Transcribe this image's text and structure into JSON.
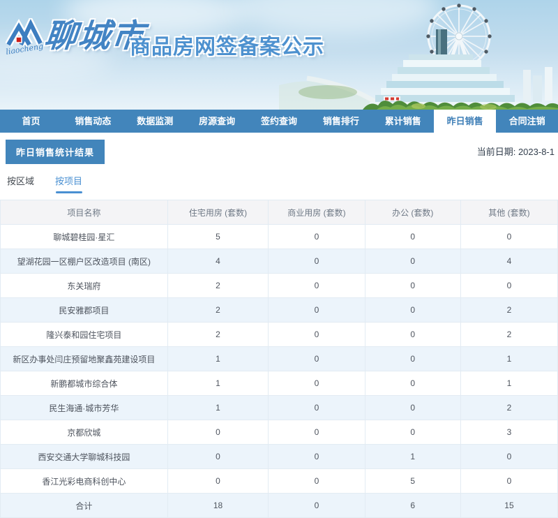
{
  "header": {
    "logo_text": "liaocheng",
    "brand": "聊城市",
    "title": "商品房网签备案公示",
    "icons": {
      "logo": "liaocheng-roof-m-logo",
      "scene": "ferris-wheel-cityscape-photo"
    }
  },
  "nav": {
    "active_index": 7,
    "items": [
      {
        "label": "首页"
      },
      {
        "label": "销售动态"
      },
      {
        "label": "数据监测"
      },
      {
        "label": "房源查询"
      },
      {
        "label": "签约查询"
      },
      {
        "label": "销售排行"
      },
      {
        "label": "累计销售"
      },
      {
        "label": "昨日销售"
      },
      {
        "label": "合同注销"
      }
    ]
  },
  "toolbar": {
    "section_title": "昨日销售统计结果",
    "date_label": "当前日期:",
    "date_value": "2023-8-1"
  },
  "tabs": [
    {
      "label": "按区域",
      "active": false
    },
    {
      "label": "按项目",
      "active": true
    }
  ],
  "table": {
    "columns": [
      "项目名称",
      "住宅用房 (套数)",
      "商业用房 (套数)",
      "办公 (套数)",
      "其他 (套数)"
    ],
    "col_widths": [
      "30%",
      "18.1%",
      "17.3%",
      "17.2%",
      "17.4%"
    ],
    "rows": [
      {
        "name": "聊城碧桂园·星汇",
        "values": [
          "5",
          "0",
          "0",
          "0"
        ]
      },
      {
        "name": "望湖花园一区棚户区改造项目 (南区)",
        "values": [
          "4",
          "0",
          "0",
          "4"
        ]
      },
      {
        "name": "东关瑞府",
        "values": [
          "2",
          "0",
          "0",
          "0"
        ]
      },
      {
        "name": "民安雅郡项目",
        "values": [
          "2",
          "0",
          "0",
          "2"
        ]
      },
      {
        "name": "隆兴泰和园住宅项目",
        "values": [
          "2",
          "0",
          "0",
          "2"
        ]
      },
      {
        "name": "新区办事处闫庄预留地聚鑫苑建设项目",
        "values": [
          "1",
          "0",
          "0",
          "1"
        ]
      },
      {
        "name": "新鹏都城市综合体",
        "values": [
          "1",
          "0",
          "0",
          "1"
        ]
      },
      {
        "name": "民生海通·城市芳华",
        "values": [
          "1",
          "0",
          "0",
          "2"
        ]
      },
      {
        "name": "京都欣城",
        "values": [
          "0",
          "0",
          "0",
          "3"
        ]
      },
      {
        "name": "西安交通大学聊城科技园",
        "values": [
          "0",
          "0",
          "1",
          "0"
        ]
      },
      {
        "name": "香江光彩电商科创中心",
        "values": [
          "0",
          "0",
          "5",
          "0"
        ]
      },
      {
        "name": "合计",
        "values": [
          "18",
          "0",
          "6",
          "15"
        ],
        "is_total": true
      }
    ]
  },
  "colors": {
    "accent_blue": "#4285bb",
    "active_tab_text": "#3f7fb7",
    "link_blue": "#4a90d2",
    "stripe_blue": "#ecf4fb",
    "table_border": "#e2ebf3",
    "thead_bg": "#f4f4f6",
    "thead_text": "#6e7885",
    "cell_text": "#4e545e",
    "brand_blue": "#4384c4",
    "title_blue": "#4d91cf",
    "date_text": "#333f4d"
  }
}
